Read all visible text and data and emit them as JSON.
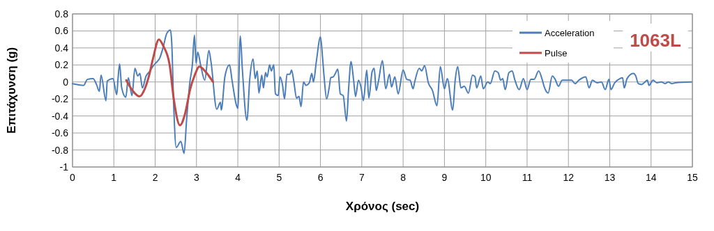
{
  "chart_data": {
    "type": "line",
    "xlabel": "Χρόνος (sec)",
    "ylabel": "Επιτάχυνση (g)",
    "xlim": [
      0,
      15
    ],
    "xticks": [
      0,
      1,
      2,
      3,
      4,
      5,
      6,
      7,
      8,
      9,
      10,
      11,
      12,
      13,
      14,
      15
    ],
    "ylim": [
      -1,
      0.8
    ],
    "yticks": [
      -1,
      -0.8,
      -0.6,
      -0.4,
      -0.2,
      0,
      0.2,
      0.4,
      0.6,
      0.8
    ],
    "grid": true,
    "legend": "top right",
    "marker": "none",
    "line_style": "solid",
    "annotations": [
      "1063L"
    ],
    "series": [
      {
        "name": "Acceleration",
        "color": "#4a7ebb",
        "x": [
          0,
          0.27,
          0.36,
          0.5,
          0.58,
          0.65,
          0.69,
          0.81,
          0.84,
          0.98,
          1.07,
          1.1,
          1.14,
          1.19,
          1.29,
          1.35,
          1.44,
          1.51,
          1.58,
          1.63,
          1.69,
          1.78,
          1.86,
          1.97,
          2.05,
          2.11,
          2.2,
          2.28,
          2.37,
          2.4,
          2.45,
          2.51,
          2.62,
          2.7,
          2.76,
          2.84,
          2.9,
          2.95,
          2.99,
          3.03,
          3.1,
          3.2,
          3.3,
          3.35,
          3.49,
          3.58,
          3.6,
          3.69,
          3.8,
          3.86,
          3.97,
          4.0,
          4.06,
          4.11,
          4.22,
          4.29,
          4.37,
          4.42,
          4.47,
          4.51,
          4.58,
          4.62,
          4.67,
          4.71,
          4.77,
          4.81,
          4.87,
          4.91,
          4.98,
          5.02,
          5.08,
          5.13,
          5.19,
          5.26,
          5.3,
          5.36,
          5.42,
          5.48,
          5.53,
          5.59,
          5.65,
          5.73,
          5.79,
          5.83,
          5.9,
          6.0,
          6.05,
          6.09,
          6.15,
          6.21,
          6.25,
          6.31,
          6.36,
          6.42,
          6.48,
          6.55,
          6.63,
          6.68,
          6.74,
          6.8,
          6.85,
          6.92,
          6.98,
          7.04,
          7.12,
          7.17,
          7.25,
          7.3,
          7.35,
          7.4,
          7.5,
          7.58,
          7.67,
          7.72,
          7.8,
          7.88,
          8.0,
          8.09,
          8.17,
          8.24,
          8.28,
          8.39,
          8.45,
          8.52,
          8.61,
          8.71,
          8.82,
          8.9,
          9.0,
          9.07,
          9.2,
          9.26,
          9.32,
          9.4,
          9.48,
          9.58,
          9.68,
          9.74,
          9.78,
          9.88,
          9.94,
          10.05,
          10.11,
          10.22,
          10.3,
          10.36,
          10.41,
          10.47,
          10.56,
          10.64,
          10.7,
          10.81,
          10.91,
          11.0,
          11.09,
          11.17,
          11.28,
          11.37,
          11.41,
          11.51,
          11.61,
          11.68,
          11.76,
          11.85,
          11.96,
          12.08,
          12.16,
          12.25,
          12.42,
          12.5,
          12.58,
          12.7,
          12.8,
          12.89,
          12.98,
          13.03,
          13.12,
          13.25,
          13.31,
          13.35,
          13.42,
          13.57,
          13.63,
          13.69,
          13.77,
          13.83,
          13.91,
          13.95,
          14.05,
          14.14,
          14.25,
          14.34,
          14.42,
          14.5,
          14.59,
          14.98
        ],
        "values": [
          -0.02,
          -0.04,
          0.03,
          0.04,
          -0.03,
          -0.11,
          0.08,
          -0.22,
          0.01,
          0.04,
          -0.15,
          0.03,
          0.21,
          -0.07,
          -0.18,
          0.05,
          -0.16,
          0.16,
          0.07,
          0.1,
          -0.07,
          0.07,
          0.12,
          0.2,
          0.24,
          0.28,
          0.42,
          0.57,
          0.61,
          0.47,
          -0.3,
          -0.77,
          -0.7,
          -0.84,
          -0.45,
          0,
          0.2,
          0.55,
          0.22,
          0.35,
          0.2,
          0.02,
          0.37,
          0.24,
          -0.32,
          -0.24,
          -0.33,
          0.07,
          0.2,
          0.02,
          -0.28,
          -0.31,
          0.54,
          0.15,
          -0.45,
          0.04,
          0.27,
          0.04,
          0.13,
          -0.13,
          0.08,
          -0.07,
          0.11,
          0.06,
          0.2,
          0.13,
          0.2,
          -0.14,
          -0.16,
          0.06,
          -0.03,
          -0.2,
          0.09,
          0.09,
          0.14,
          -0.01,
          -0.19,
          -0.17,
          -0.29,
          0,
          -0.04,
          -0.01,
          0.1,
          0,
          0.24,
          0.53,
          0.29,
          0.05,
          -0.2,
          -0.07,
          0.05,
          0.06,
          0.1,
          0.15,
          -0.14,
          -0.16,
          -0.46,
          -0.09,
          0.24,
          0.03,
          -0.17,
          0.02,
          -0.06,
          -0.22,
          0.14,
          -0.19,
          0.12,
          0.16,
          -0.1,
          0,
          0.25,
          -0.08,
          0.09,
          -0.06,
          0.06,
          -0.14,
          0.14,
          0.03,
          0.02,
          -0.08,
          0,
          0.16,
          0.13,
          0.19,
          -0.01,
          -0.1,
          -0.28,
          0.18,
          -0.08,
          0.04,
          -0.33,
          0.02,
          0.18,
          -0.07,
          -0.05,
          -0.13,
          0.08,
          0.06,
          -0.07,
          0.07,
          -0.08,
          0,
          -0.02,
          0.13,
          0.11,
          0.02,
          0.04,
          -0.09,
          0.11,
          0.13,
          0.03,
          -0.09,
          0.04,
          -0.09,
          0.03,
          0.03,
          0.13,
          0.02,
          -0.05,
          -0.13,
          0.07,
          0.03,
          -0.05,
          0.02,
          0.02,
          0.02,
          -0.02,
          0.02,
          0.06,
          -0.07,
          0.02,
          -0.01,
          0,
          -0.09,
          0.03,
          -0.09,
          -0.01,
          0.04,
          0.05,
          -0.07,
          0.04,
          0.1,
          0.07,
          -0.02,
          -0.03,
          -0.01,
          0.02,
          -0.04,
          0.02,
          -0.01,
          0,
          -0.02,
          0,
          -0.02,
          -0.01,
          0
        ]
      },
      {
        "name": "Pulse",
        "color": "#be4b48",
        "x": [
          1.3,
          1.45,
          1.62,
          1.75,
          1.85,
          1.95,
          2.09,
          2.2,
          2.35,
          2.45,
          2.6,
          2.72,
          2.85,
          2.95,
          3.07,
          3.22,
          3.4
        ],
        "values": [
          0.02,
          -0.1,
          -0.17,
          -0.08,
          0.07,
          0.28,
          0.5,
          0.42,
          0.2,
          -0.2,
          -0.51,
          -0.38,
          -0.08,
          0.07,
          0.18,
          0.12,
          0
        ]
      }
    ]
  }
}
